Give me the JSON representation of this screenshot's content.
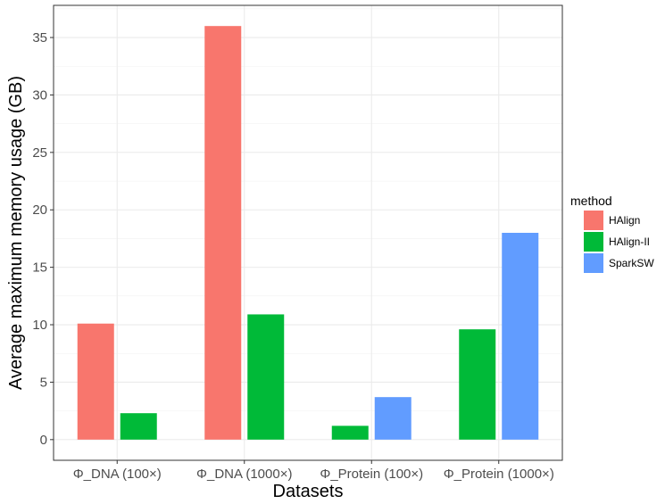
{
  "chart_data": {
    "type": "bar",
    "xlabel": "Datasets",
    "ylabel": "Average maximum memory usage (GB)",
    "categories": [
      "Φ_DNA (100×)",
      "Φ_DNA (1000×)",
      "Φ_Protein (100×)",
      "Φ_Protein (1000×)"
    ],
    "ylim": [
      -1.8,
      37.8
    ],
    "yticks": [
      0,
      5,
      10,
      15,
      20,
      25,
      30,
      35
    ],
    "grid": true,
    "legend": {
      "title": "method",
      "position": "right"
    },
    "series": [
      {
        "name": "HAlign",
        "color": "#F8766D",
        "values": [
          10.1,
          36.0,
          null,
          null
        ]
      },
      {
        "name": "HAlign-II",
        "color": "#00BA38",
        "values": [
          2.3,
          10.9,
          1.2,
          9.6
        ]
      },
      {
        "name": "SparkSW",
        "color": "#619CFF",
        "values": [
          null,
          null,
          3.7,
          18.0
        ]
      }
    ]
  }
}
